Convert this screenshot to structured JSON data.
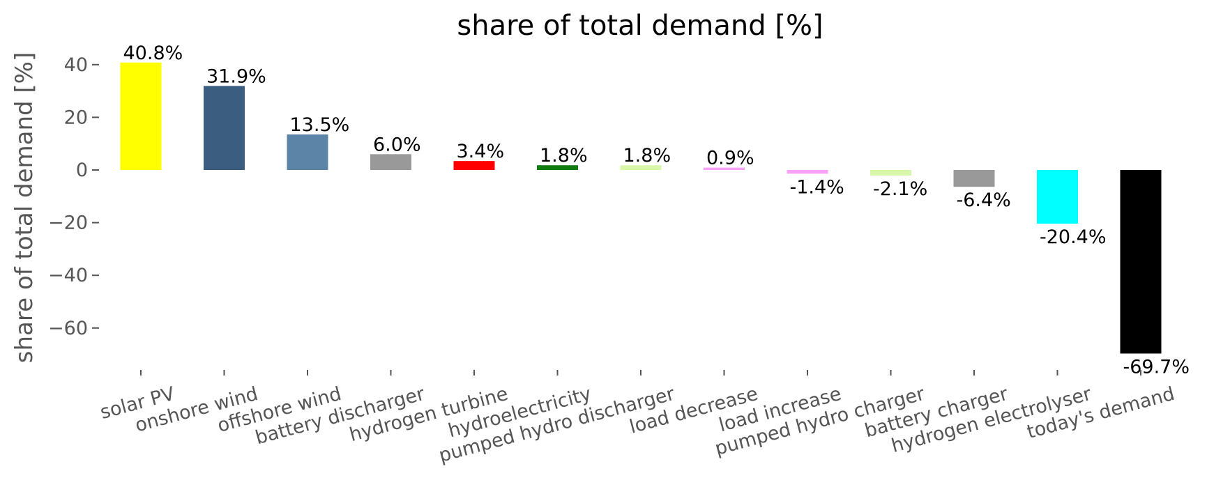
{
  "chart_data": {
    "type": "bar",
    "title": "share of total demand [%]",
    "xlabel": "",
    "ylabel": "share of total demand [%]",
    "ylim": [
      -77,
      47
    ],
    "yticks": [
      40,
      20,
      0,
      -20,
      -40,
      -60
    ],
    "ytick_labels": [
      "40",
      "20",
      "0",
      "−20",
      "−40",
      "−60"
    ],
    "grid": false,
    "categories": [
      "solar PV",
      "onshore wind",
      "offshore wind",
      "battery discharger",
      "hydrogen turbine",
      "hydroelectricity",
      "pumped hydro discharger",
      "load decrease",
      "load increase",
      "pumped hydro charger",
      "battery charger",
      "hydrogen electrolyser",
      "today's demand"
    ],
    "values": [
      40.8,
      31.9,
      13.5,
      6.0,
      3.4,
      1.8,
      1.8,
      0.9,
      -1.4,
      -2.1,
      -6.4,
      -20.4,
      -69.7
    ],
    "value_labels": [
      "40.8%",
      "31.9%",
      "13.5%",
      "6.0%",
      "3.4%",
      "1.8%",
      "1.8%",
      "0.9%",
      "-1.4%",
      "-2.1%",
      "-6.4%",
      "-20.4%",
      "-69.7%"
    ],
    "colors": [
      "#ffff00",
      "#3b5d80",
      "#5b84a6",
      "#999999",
      "#ff0000",
      "#0f7d0f",
      "#d8f7a8",
      "#f7a1f7",
      "#f7a1f7",
      "#d8f7a8",
      "#999999",
      "#00ffff",
      "#000000"
    ]
  }
}
